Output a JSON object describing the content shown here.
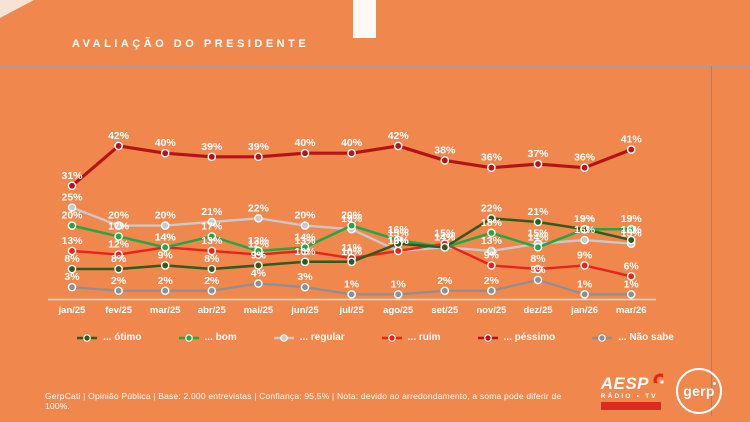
{
  "slide": {
    "title": "AVALIAÇÃO DO PRESIDENTE",
    "footer": "GerpCati | Opinião Pública | Base: 2.000 entrevistas | Confiança: 95,5% | Nota: devido ao arredondamento, a soma pode diferir de 100%.",
    "background_color": "#F0874D"
  },
  "chart_data": {
    "type": "line",
    "title": "Avaliação do Presidente",
    "xlabel": "",
    "ylabel": "",
    "ylim": [
      0,
      50
    ],
    "grid": false,
    "legend_position": "bottom",
    "point_labels": "percent shown above every point",
    "categories": [
      "jan/25",
      "fev/25",
      "mar/25",
      "abr/25",
      "mai/25",
      "jun/25",
      "jul/25",
      "ago/25",
      "set/25",
      "nov/25",
      "dez/25",
      "jan/26",
      "mar/26"
    ],
    "series": [
      {
        "name": "... ótimo",
        "color": "#2E5B1F",
        "values": [
          8,
          8,
          9,
          8,
          9,
          10,
          10,
          15,
          14,
          22,
          21,
          19,
          16
        ]
      },
      {
        "name": "... bom",
        "color": "#1FA844",
        "values": [
          20,
          17,
          14,
          17,
          13,
          14,
          20,
          16,
          14,
          18,
          14,
          19,
          19
        ]
      },
      {
        "name": "... regular",
        "color": "#C9C9C9",
        "values": [
          25,
          20,
          20,
          21,
          22,
          20,
          19,
          13,
          14,
          13,
          15,
          16,
          15
        ]
      },
      {
        "name": "... ruim",
        "color": "#E8231A",
        "values": [
          13,
          12,
          14,
          13,
          12,
          13,
          11,
          13,
          15,
          9,
          8,
          9,
          6
        ]
      },
      {
        "name": "... péssimo",
        "color": "#B51318",
        "values": [
          31,
          42,
          40,
          39,
          39,
          40,
          40,
          42,
          38,
          36,
          37,
          36,
          41
        ]
      },
      {
        "name": "... Não sabe",
        "color": "#8A9097",
        "values": [
          3,
          2,
          2,
          2,
          4,
          3,
          1,
          1,
          2,
          2,
          5,
          1,
          1
        ]
      }
    ]
  },
  "logos": {
    "aesp": {
      "name": "AESP",
      "subtitle": "RÁDIO • TV"
    },
    "gerp": {
      "name": "gerp"
    }
  }
}
